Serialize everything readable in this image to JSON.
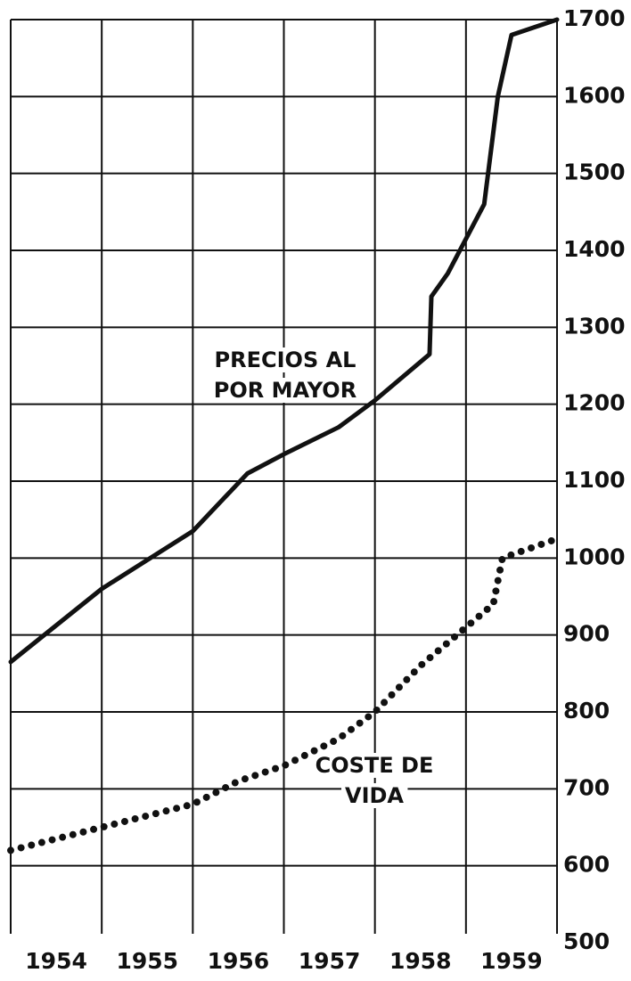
{
  "chart_data": {
    "type": "line",
    "categories": [
      "1954",
      "1955",
      "1956",
      "1957",
      "1958",
      "1959"
    ],
    "xlim": [
      1954,
      1960
    ],
    "ylim": [
      500,
      1700
    ],
    "yticks": [
      500,
      600,
      700,
      800,
      900,
      1000,
      1100,
      1200,
      1300,
      1400,
      1500,
      1600,
      1700
    ],
    "grid": true,
    "annotations": [
      {
        "lines": [
          "PRECIOS AL",
          "POR MAYOR"
        ]
      },
      {
        "lines": [
          "COSTE DE",
          "VIDA"
        ]
      }
    ],
    "series": [
      {
        "color": "#111111",
        "style": "solid",
        "x": [
          1954.0,
          1955.0,
          1956.0,
          1956.6,
          1957.0,
          1957.6,
          1958.0,
          1958.6,
          1958.62,
          1958.8,
          1959.0,
          1959.2,
          1959.35,
          1959.5,
          1960.0
        ],
        "values": [
          865,
          960,
          1035,
          1110,
          1135,
          1170,
          1205,
          1265,
          1340,
          1370,
          1415,
          1460,
          1600,
          1680,
          1700
        ]
      },
      {
        "color": "#111111",
        "style": "dotted",
        "x": [
          1954.0,
          1955.0,
          1956.0,
          1956.5,
          1957.0,
          1957.6,
          1958.0,
          1958.5,
          1959.0,
          1959.3,
          1959.4,
          1960.0
        ],
        "values": [
          620,
          650,
          680,
          710,
          730,
          765,
          800,
          860,
          910,
          940,
          1000,
          1025
        ]
      }
    ]
  }
}
